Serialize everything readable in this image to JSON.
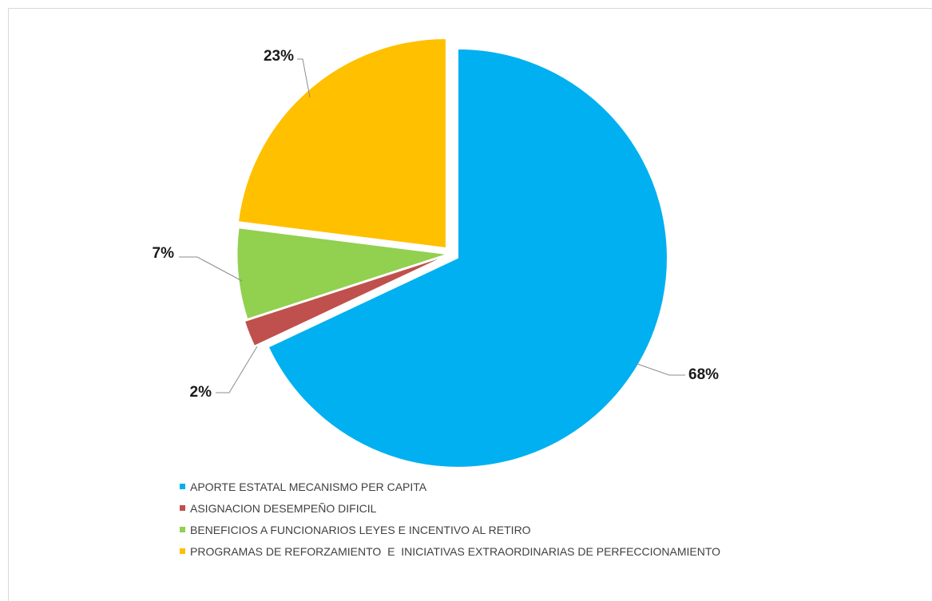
{
  "chart_data": {
    "type": "pie",
    "title": "",
    "categories": [
      "APORTE ESTATAL MECANISMO PER CAPITA",
      "ASIGNACION DESEMPEÑO DIFICIL",
      "BENEFICIOS A FUNCIONARIOS LEYES E INCENTIVO AL RETIRO",
      "PROGRAMAS DE REFORZAMIENTO  E  INICIATIVAS EXTRAORDINARIAS DE PERFECCIONAMIENTO"
    ],
    "values": [
      68,
      2,
      7,
      23
    ],
    "data_labels": [
      "68%",
      "2%",
      "7%",
      "23%"
    ],
    "colors": [
      "#00B0F0",
      "#C0504D",
      "#92D050",
      "#FFC000"
    ],
    "exploded": true,
    "legend_position": "bottom-left"
  }
}
